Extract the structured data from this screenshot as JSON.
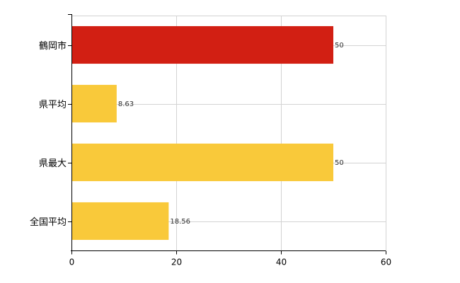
{
  "chart_data": {
    "type": "bar",
    "orientation": "horizontal",
    "categories": [
      "鶴岡市",
      "県平均",
      "県最大",
      "全国平均"
    ],
    "values": [
      50,
      8.63,
      50,
      18.56
    ],
    "value_labels": [
      "50",
      "8.63",
      "50",
      "18.56"
    ],
    "bar_colors": [
      "#d21f13",
      "#f9c93a",
      "#f9c93a",
      "#f9c93a"
    ],
    "xlim": [
      0,
      60
    ],
    "x_ticks": [
      0,
      20,
      40,
      60
    ],
    "x_tick_labels": [
      "0",
      "20",
      "40",
      "60"
    ],
    "grid": true,
    "grid_color": "#d3d3d3",
    "title": "",
    "xlabel": "",
    "ylabel": ""
  }
}
